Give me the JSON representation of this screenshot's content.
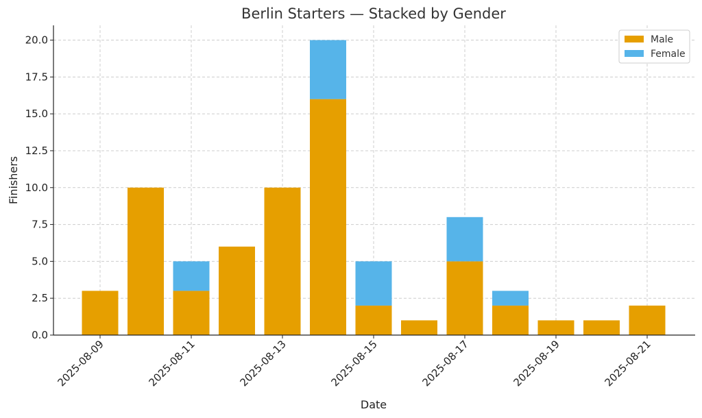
{
  "chart_data": {
    "type": "bar",
    "stacked": true,
    "title": "Berlin Starters — Stacked by Gender",
    "xlabel": "Date",
    "ylabel": "Finishers",
    "categories": [
      "2025-08-09",
      "2025-08-10",
      "2025-08-11",
      "2025-08-12",
      "2025-08-13",
      "2025-08-14",
      "2025-08-15",
      "2025-08-16",
      "2025-08-17",
      "2025-08-18",
      "2025-08-19",
      "2025-08-20",
      "2025-08-21"
    ],
    "x_tick_labels": [
      "2025-08-09",
      "2025-08-11",
      "2025-08-13",
      "2025-08-15",
      "2025-08-17",
      "2025-08-19",
      "2025-08-21"
    ],
    "y_ticks": [
      "0.0",
      "2.5",
      "5.0",
      "7.5",
      "10.0",
      "12.5",
      "15.0",
      "17.5",
      "20.0"
    ],
    "ylim": [
      0,
      21
    ],
    "grid": true,
    "legend_position": "top-right",
    "series": [
      {
        "name": "Male",
        "color": "#E69F00",
        "values": [
          3,
          10,
          3,
          6,
          10,
          16,
          2,
          1,
          5,
          2,
          1,
          1,
          2
        ]
      },
      {
        "name": "Female",
        "color": "#56B4E9",
        "values": [
          0,
          0,
          2,
          0,
          0,
          4,
          3,
          0,
          3,
          1,
          0,
          0,
          0
        ]
      }
    ]
  }
}
